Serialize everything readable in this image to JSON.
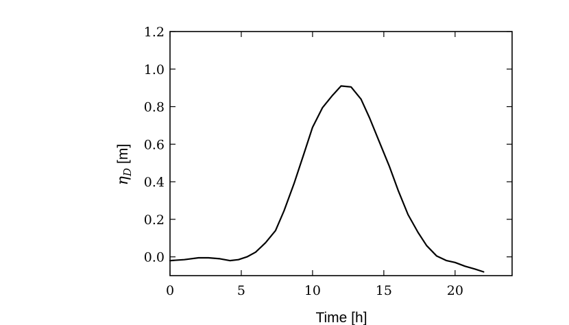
{
  "chart_data": {
    "type": "line",
    "title": "",
    "xlabel": "Time [h]",
    "ylabel": {
      "symbol": "η",
      "subscript": "D",
      "unit": "[m]"
    },
    "xlim": [
      0,
      24
    ],
    "ylim": [
      -0.1,
      1.2
    ],
    "xticks": [
      0,
      5,
      10,
      15,
      20
    ],
    "xtick_labels": [
      "0",
      "5",
      "10",
      "15",
      "20"
    ],
    "yticks": [
      0.0,
      0.2,
      0.4,
      0.6,
      0.8,
      1.0,
      1.2
    ],
    "ytick_labels": [
      "0.0",
      "0.2",
      "0.4",
      "0.6",
      "0.8",
      "1.0",
      "1.2"
    ],
    "grid": false,
    "line_color": "#000000",
    "series": [
      {
        "x": [
          0,
          1,
          2,
          2.7,
          3.5,
          4.2,
          4.8,
          5.4,
          6.0,
          6.7,
          7.4,
          8.0,
          8.7,
          9.4,
          10.0,
          10.7,
          11.4,
          12.0,
          12.7,
          13.4,
          14.0,
          14.7,
          15.4,
          16.0,
          16.7,
          17.4,
          18.0,
          18.7,
          19.4,
          20.0,
          20.7,
          21.4,
          22.0
        ],
        "y": [
          -0.02,
          -0.015,
          -0.005,
          -0.005,
          -0.01,
          -0.02,
          -0.015,
          0.0,
          0.025,
          0.075,
          0.14,
          0.245,
          0.39,
          0.55,
          0.69,
          0.795,
          0.86,
          0.91,
          0.905,
          0.84,
          0.74,
          0.61,
          0.48,
          0.355,
          0.225,
          0.13,
          0.06,
          0.005,
          -0.02,
          -0.03,
          -0.05,
          -0.065,
          -0.08
        ]
      }
    ]
  }
}
